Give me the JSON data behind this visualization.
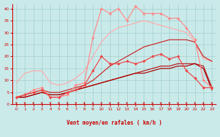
{
  "background_color": "#caeaea",
  "grid_color": "#a0cccc",
  "xlabel": "Vent moyen/en rafales ( km/h )",
  "xlim": [
    -0.5,
    23.5
  ],
  "ylim": [
    0,
    42
  ],
  "yticks": [
    0,
    5,
    10,
    15,
    20,
    25,
    30,
    35,
    40
  ],
  "xticks": [
    0,
    1,
    2,
    3,
    4,
    5,
    6,
    7,
    8,
    9,
    10,
    11,
    12,
    13,
    14,
    15,
    16,
    17,
    18,
    19,
    20,
    21,
    22,
    23
  ],
  "series": [
    {
      "color": "#ff8888",
      "lw": 0.9,
      "marker": "D",
      "ms": 2.0,
      "x": [
        0,
        1,
        2,
        3,
        4,
        5,
        6,
        7,
        8,
        9,
        10,
        11,
        12,
        13,
        14,
        15,
        16,
        17,
        18,
        19,
        20,
        21,
        22,
        23
      ],
      "y": [
        3,
        4,
        6,
        7,
        3,
        3,
        4,
        8,
        9,
        28,
        40,
        38,
        40,
        35,
        41,
        38,
        38,
        38,
        36,
        36,
        32,
        27,
        10,
        7
      ]
    },
    {
      "color": "#ffaaaa",
      "lw": 0.9,
      "marker": null,
      "ms": 0,
      "x": [
        0,
        1,
        2,
        3,
        4,
        5,
        6,
        7,
        8,
        9,
        10,
        11,
        12,
        13,
        14,
        15,
        16,
        17,
        18,
        19,
        20,
        21,
        22,
        23
      ],
      "y": [
        9,
        13,
        14,
        14,
        9,
        8,
        9,
        11,
        14,
        20,
        26,
        30,
        32,
        33,
        34,
        35,
        34,
        33,
        32,
        31,
        30,
        26,
        19,
        18
      ]
    },
    {
      "color": "#ee4444",
      "lw": 0.9,
      "marker": "D",
      "ms": 2.0,
      "x": [
        0,
        1,
        2,
        3,
        4,
        5,
        6,
        7,
        8,
        9,
        10,
        11,
        12,
        13,
        14,
        15,
        16,
        17,
        18,
        19,
        20,
        21,
        22,
        23
      ],
      "y": [
        3,
        4,
        5,
        6,
        3,
        3,
        5,
        6,
        8,
        14,
        20,
        17,
        17,
        18,
        17,
        18,
        20,
        21,
        19,
        20,
        14,
        11,
        7,
        7
      ]
    },
    {
      "color": "#cc2222",
      "lw": 0.9,
      "marker": null,
      "ms": 0,
      "x": [
        0,
        1,
        2,
        3,
        4,
        5,
        6,
        7,
        8,
        9,
        10,
        11,
        12,
        13,
        14,
        15,
        16,
        17,
        18,
        19,
        20,
        21,
        22,
        23
      ],
      "y": [
        3,
        4,
        5,
        6,
        5,
        5,
        6,
        7,
        8,
        10,
        13,
        16,
        18,
        20,
        22,
        24,
        25,
        26,
        27,
        27,
        27,
        26,
        20,
        18
      ]
    },
    {
      "color": "#bb1111",
      "lw": 0.9,
      "marker": null,
      "ms": 0,
      "x": [
        0,
        1,
        2,
        3,
        4,
        5,
        6,
        7,
        8,
        9,
        10,
        11,
        12,
        13,
        14,
        15,
        16,
        17,
        18,
        19,
        20,
        21,
        22,
        23
      ],
      "y": [
        3,
        3,
        4,
        5,
        4,
        4,
        5,
        6,
        7,
        8,
        9,
        10,
        11,
        12,
        13,
        14,
        15,
        16,
        16,
        17,
        17,
        17,
        16,
        7
      ]
    },
    {
      "color": "#aa0000",
      "lw": 0.9,
      "marker": null,
      "ms": 0,
      "x": [
        0,
        1,
        2,
        3,
        4,
        5,
        6,
        7,
        8,
        9,
        10,
        11,
        12,
        13,
        14,
        15,
        16,
        17,
        18,
        19,
        20,
        21,
        22,
        23
      ],
      "y": [
        3,
        3,
        4,
        5,
        4,
        4,
        5,
        6,
        7,
        8,
        9,
        10,
        11,
        12,
        13,
        13,
        14,
        15,
        15,
        16,
        16,
        17,
        15,
        6
      ]
    }
  ],
  "arrow_color": "#cc0000",
  "tick_color": "#cc0000",
  "label_color": "#cc0000"
}
